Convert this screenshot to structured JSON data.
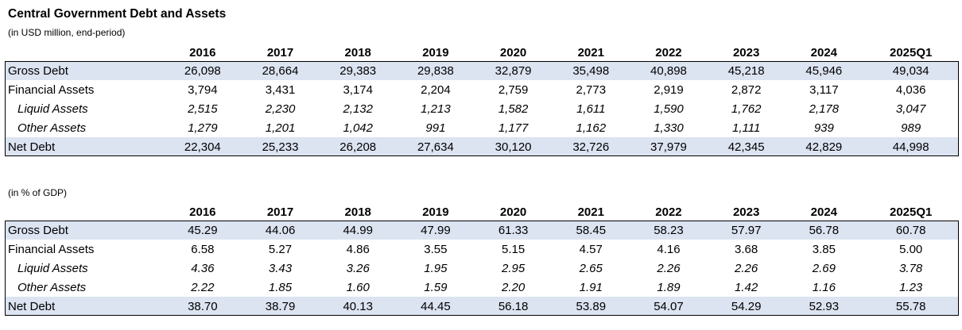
{
  "title": "Central Government Debt and Assets",
  "section1": {
    "subtitle": "(in USD million, end-period)",
    "headers": [
      "2016",
      "2017",
      "2018",
      "2019",
      "2020",
      "2021",
      "2022",
      "2023",
      "2024",
      "2025Q1"
    ],
    "rows": [
      {
        "label": "Gross Debt",
        "style": "shade",
        "values": [
          "26,098",
          "28,664",
          "29,383",
          "29,838",
          "32,879",
          "35,498",
          "40,898",
          "45,218",
          "45,946",
          "49,034"
        ]
      },
      {
        "label": "Financial Assets",
        "style": "plain",
        "values": [
          "3,794",
          "3,431",
          "3,174",
          "2,204",
          "2,759",
          "2,773",
          "2,919",
          "2,872",
          "3,117",
          "4,036"
        ]
      },
      {
        "label": "Liquid Assets",
        "style": "ital",
        "values": [
          "2,515",
          "2,230",
          "2,132",
          "1,213",
          "1,582",
          "1,611",
          "1,590",
          "1,762",
          "2,178",
          "3,047"
        ]
      },
      {
        "label": "Other Assets",
        "style": "ital",
        "values": [
          "1,279",
          "1,201",
          "1,042",
          "991",
          "1,177",
          "1,162",
          "1,330",
          "1,111",
          "939",
          "989"
        ]
      },
      {
        "label": "Net Debt",
        "style": "shade",
        "values": [
          "22,304",
          "25,233",
          "26,208",
          "27,634",
          "30,120",
          "32,726",
          "37,979",
          "42,345",
          "42,829",
          "44,998"
        ]
      }
    ]
  },
  "section2": {
    "subtitle": "(in % of GDP)",
    "headers": [
      "2016",
      "2017",
      "2018",
      "2019",
      "2020",
      "2021",
      "2022",
      "2023",
      "2024",
      "2025Q1"
    ],
    "rows": [
      {
        "label": "Gross Debt",
        "style": "shade",
        "values": [
          "45.29",
          "44.06",
          "44.99",
          "47.99",
          "61.33",
          "58.45",
          "58.23",
          "57.97",
          "56.78",
          "60.78"
        ]
      },
      {
        "label": "Financial Assets",
        "style": "plain",
        "values": [
          "6.58",
          "5.27",
          "4.86",
          "3.55",
          "5.15",
          "4.57",
          "4.16",
          "3.68",
          "3.85",
          "5.00"
        ]
      },
      {
        "label": "Liquid Assets",
        "style": "ital",
        "values": [
          "4.36",
          "3.43",
          "3.26",
          "1.95",
          "2.95",
          "2.65",
          "2.26",
          "2.26",
          "2.69",
          "3.78"
        ]
      },
      {
        "label": "Other Assets",
        "style": "ital",
        "values": [
          "2.22",
          "1.85",
          "1.60",
          "1.59",
          "2.20",
          "1.91",
          "1.89",
          "1.42",
          "1.16",
          "1.23"
        ]
      },
      {
        "label": "Net Debt",
        "style": "shade",
        "values": [
          "38.70",
          "38.79",
          "40.13",
          "44.45",
          "56.18",
          "53.89",
          "54.07",
          "54.29",
          "52.93",
          "55.78"
        ]
      }
    ]
  },
  "colors": {
    "shade": "#dce3f1",
    "border": "#000000"
  }
}
